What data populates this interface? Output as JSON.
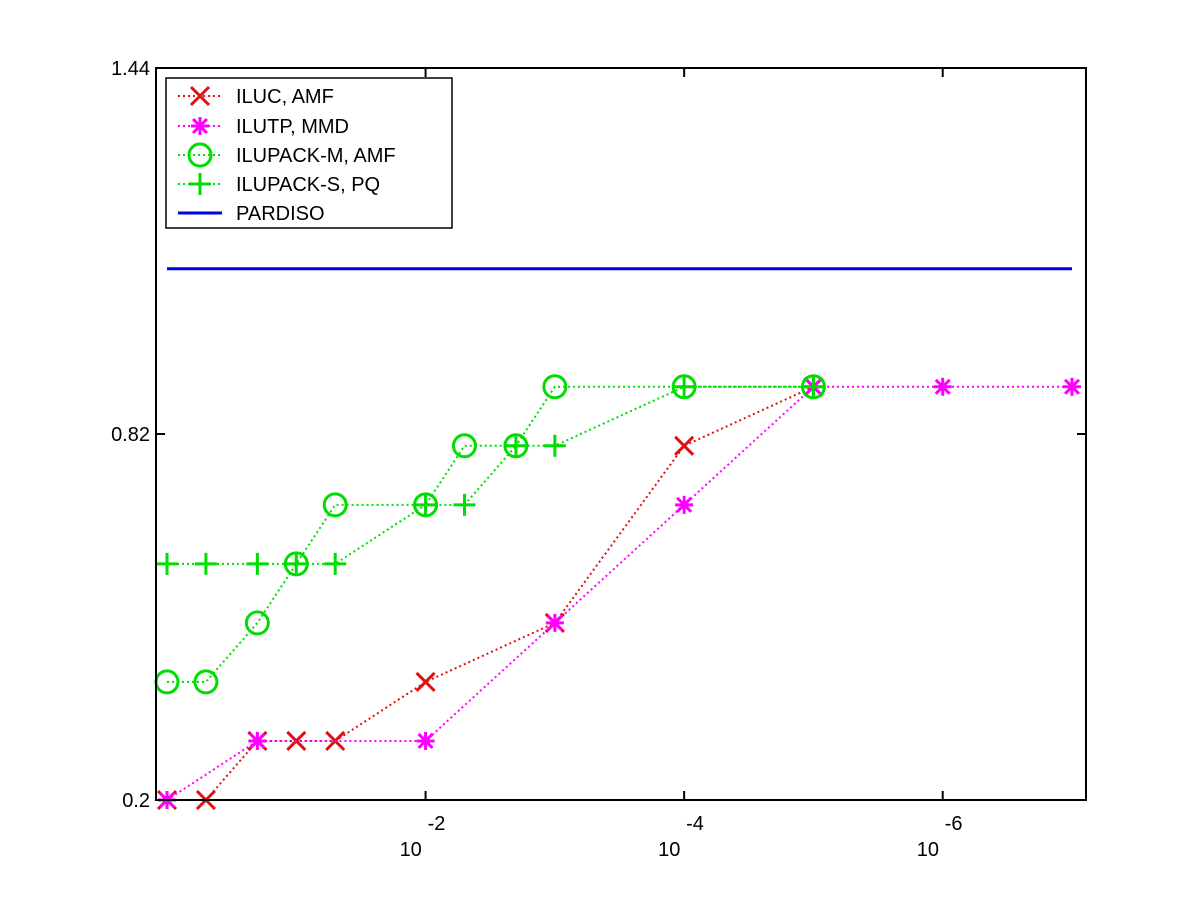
{
  "chart_data": {
    "type": "line",
    "x_scale": "log",
    "x_reversed": true,
    "xlim": [
      1,
      1e-07
    ],
    "ylim": [
      0.2,
      1.44
    ],
    "grid": false,
    "legend_position": "top-left",
    "x_ticks": [
      {
        "value": 0.01,
        "base": "10",
        "exponent": "-2"
      },
      {
        "value": 0.0001,
        "base": "10",
        "exponent": "-4"
      },
      {
        "value": 1e-06,
        "base": "10",
        "exponent": "-6"
      }
    ],
    "y_ticks": [
      "0.2",
      "0.82",
      "1.44"
    ],
    "y_tick_values": [
      0.2,
      0.82,
      1.44
    ],
    "series": [
      {
        "name": "ILUC, AMF",
        "color": "#e01010",
        "marker": "x",
        "line": "dotted",
        "x": [
          1,
          0.5,
          0.2,
          0.1,
          0.05,
          0.01,
          0.001,
          0.0001,
          1e-05
        ],
        "y": [
          0.2,
          0.2,
          0.3,
          0.3,
          0.3,
          0.4,
          0.5,
          0.8,
          0.9
        ]
      },
      {
        "name": "ILUTP, MMD",
        "color": "#ff00ff",
        "marker": "asterisk",
        "line": "dotted",
        "x": [
          1,
          0.2,
          0.01,
          0.001,
          0.0001,
          1e-05,
          1e-06,
          1e-07
        ],
        "y": [
          0.2,
          0.3,
          0.3,
          0.5,
          0.7,
          0.9,
          0.9,
          0.9
        ]
      },
      {
        "name": "ILUPACK-M, AMF",
        "color": "#00dd00",
        "marker": "circle",
        "line": "dotted",
        "x": [
          1,
          0.5,
          0.2,
          0.1,
          0.05,
          0.01,
          0.005,
          0.002,
          0.001,
          0.0001,
          1e-05
        ],
        "y": [
          0.4,
          0.4,
          0.5,
          0.6,
          0.7,
          0.7,
          0.8,
          0.8,
          0.9,
          0.9,
          0.9
        ]
      },
      {
        "name": "ILUPACK-S, PQ",
        "color": "#00dd00",
        "marker": "plus",
        "line": "dotted",
        "x": [
          1,
          0.5,
          0.2,
          0.1,
          0.05,
          0.01,
          0.005,
          0.002,
          0.001,
          0.0001,
          1e-05
        ],
        "y": [
          0.6,
          0.6,
          0.6,
          0.6,
          0.6,
          0.7,
          0.7,
          0.8,
          0.8,
          0.9,
          0.9
        ]
      },
      {
        "name": "PARDISO",
        "color": "#0000ee",
        "marker": "none",
        "line": "solid",
        "x": [
          1,
          1e-07
        ],
        "y": [
          1.1,
          1.1
        ]
      }
    ]
  }
}
